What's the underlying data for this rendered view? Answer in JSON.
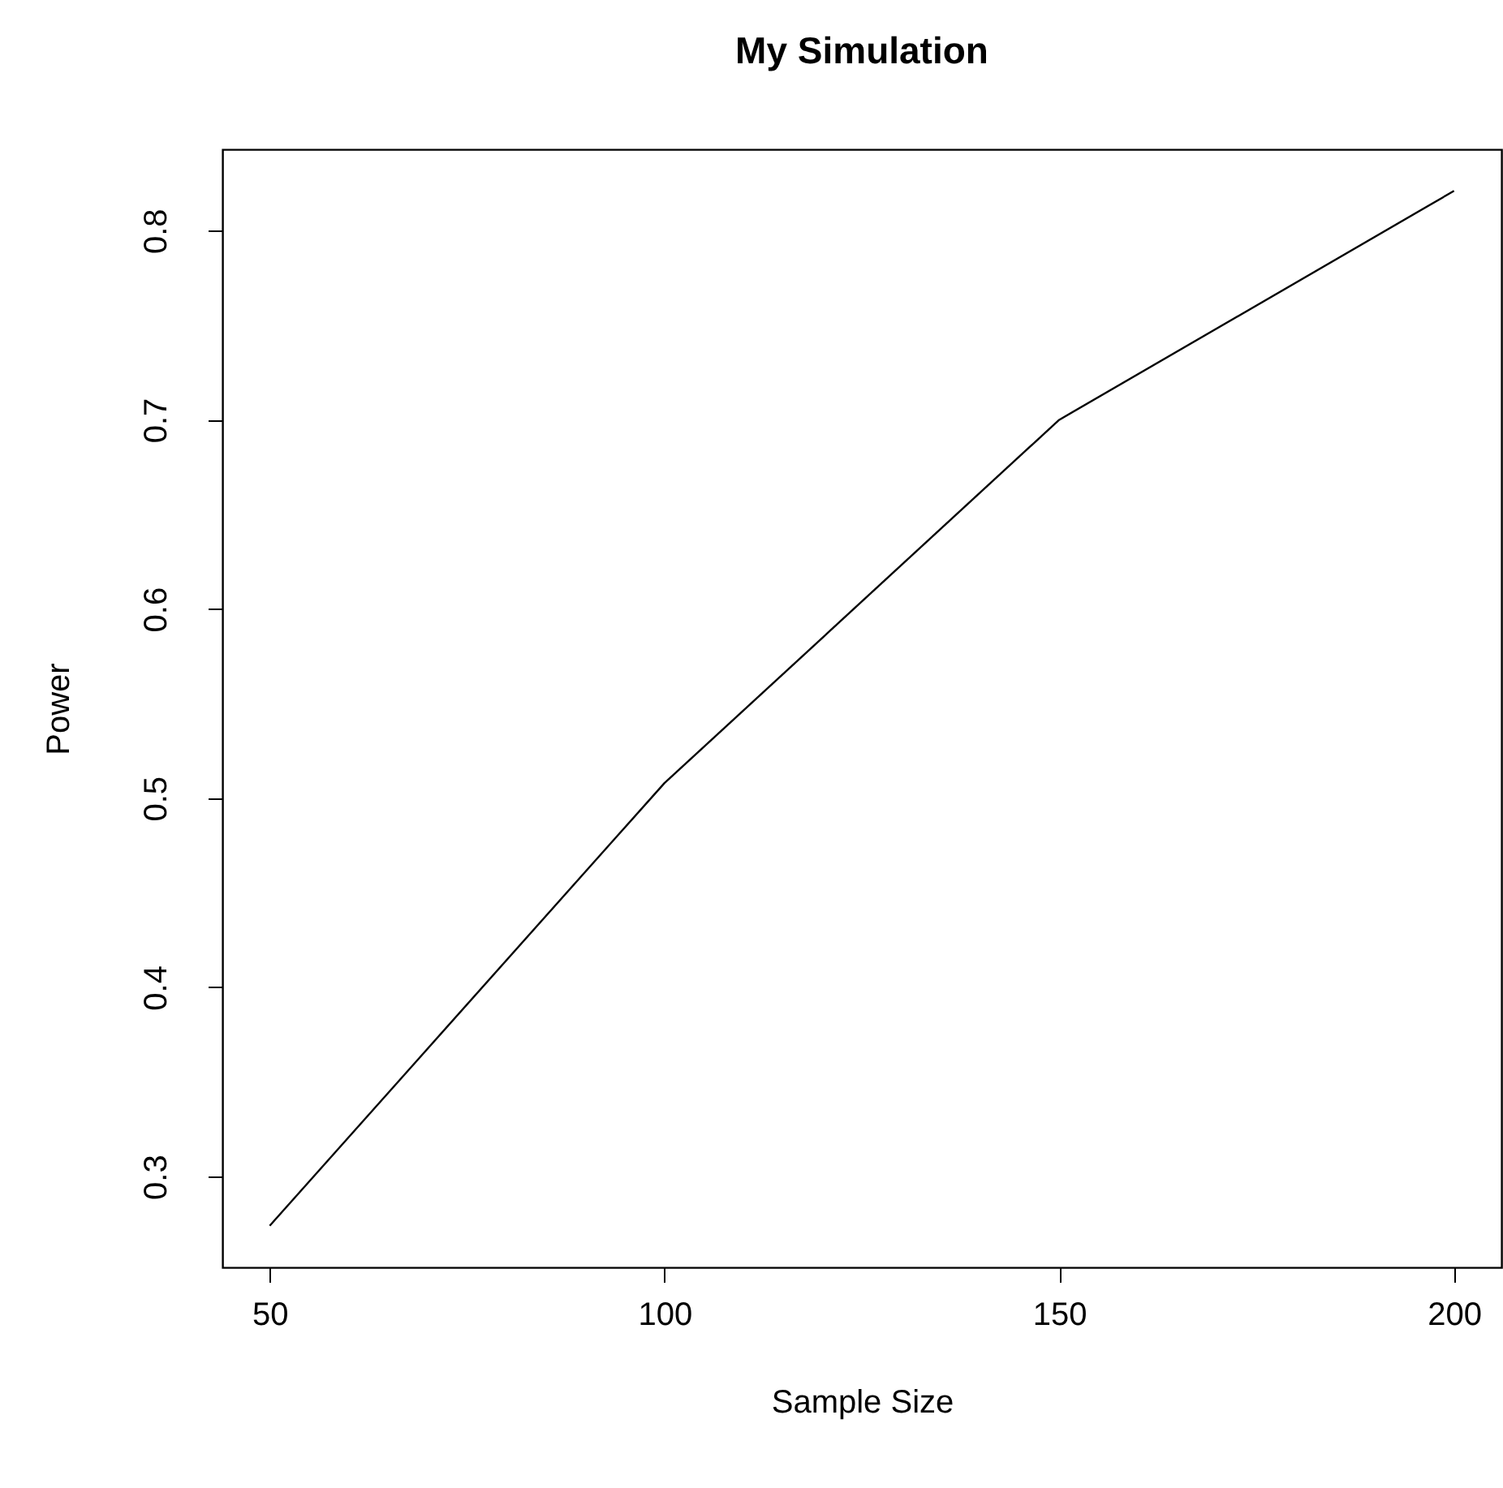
{
  "chart_data": {
    "type": "line",
    "title": "My Simulation",
    "xlabel": "Sample Size",
    "ylabel": "Power",
    "x": [
      50,
      100,
      150,
      200
    ],
    "series": [
      {
        "color": "#000000",
        "values": [
          0.274,
          0.508,
          0.7,
          0.821
        ]
      }
    ],
    "xlim": [
      44,
      206
    ],
    "ylim": [
      0.252,
      0.843
    ],
    "xticks": [
      50,
      100,
      150,
      200
    ],
    "yticks": [
      0.3,
      0.4,
      0.5,
      0.6,
      0.7,
      0.8
    ],
    "grid": false
  }
}
